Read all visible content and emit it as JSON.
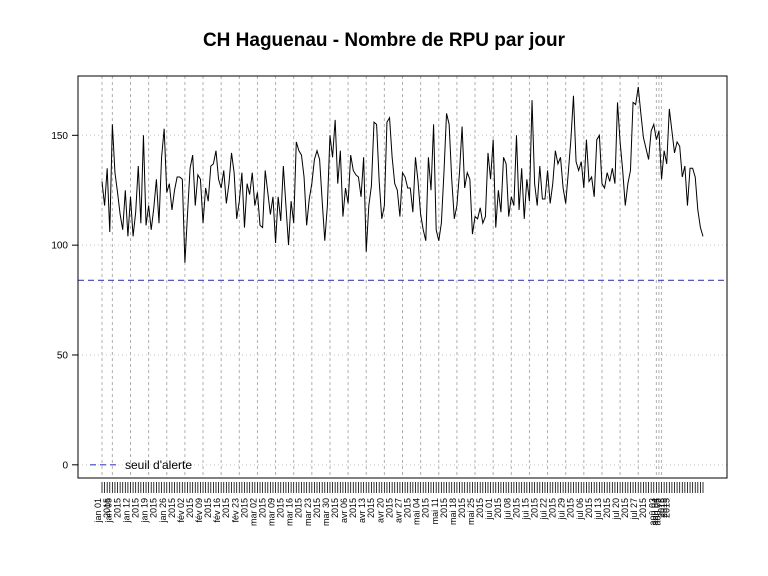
{
  "chart_data": {
    "type": "line",
    "title": "CH Haguenau  - Nombre de RPU par jour",
    "xlabel": "",
    "ylabel": "",
    "x_start": "2015-01-01",
    "ylim": [
      -6,
      177
    ],
    "yticks": [
      0,
      50,
      100,
      150
    ],
    "grid": true,
    "legend": {
      "position": "bottom-left",
      "entries": [
        "seuil d'alerte"
      ]
    },
    "threshold": {
      "name": "seuil d'alerte",
      "value": 84,
      "color": "#3b3bf5",
      "style": "dashed"
    },
    "series": [
      {
        "color": "#000000",
        "values": [
          129,
          118,
          135,
          106,
          155,
          133,
          124,
          114,
          107,
          125,
          104,
          122,
          104,
          115,
          136,
          110,
          150,
          109,
          118,
          107,
          117,
          130,
          110,
          140,
          153,
          124,
          128,
          116,
          125,
          131,
          131,
          130,
          92,
          114,
          135,
          141,
          118,
          132,
          130,
          110,
          126,
          120,
          136,
          137,
          143,
          130,
          126,
          134,
          119,
          128,
          142,
          133,
          112,
          120,
          133,
          108,
          128,
          123,
          133,
          118,
          124,
          109,
          108,
          134,
          124,
          114,
          122,
          101,
          122,
          111,
          136,
          118,
          100,
          120,
          110,
          147,
          143,
          141,
          131,
          109,
          121,
          128,
          139,
          143,
          139,
          120,
          102,
          118,
          150,
          140,
          157,
          128,
          143,
          113,
          126,
          119,
          141,
          134,
          132,
          131,
          122,
          140,
          97,
          118,
          127,
          156,
          155,
          129,
          112,
          118,
          156,
          158,
          140,
          128,
          125,
          113,
          133,
          131,
          126,
          126,
          115,
          140,
          129,
          114,
          107,
          102,
          140,
          125,
          155,
          107,
          102,
          110,
          133,
          160,
          155,
          130,
          112,
          118,
          133,
          154,
          126,
          133,
          130,
          105,
          113,
          112,
          117,
          110,
          113,
          142,
          130,
          148,
          108,
          125,
          115,
          140,
          137,
          113,
          122,
          118,
          150,
          116,
          135,
          112,
          130,
          120,
          166,
          128,
          118,
          136,
          121,
          121,
          134,
          119,
          128,
          143,
          137,
          140,
          126,
          119,
          133,
          148,
          168,
          138,
          134,
          138,
          126,
          148,
          129,
          131,
          122,
          148,
          150,
          128,
          126,
          133,
          129,
          135,
          128,
          165,
          147,
          134,
          118,
          128,
          134,
          165,
          164,
          172,
          160,
          149,
          144,
          139,
          152,
          155,
          148,
          152,
          130,
          143,
          137,
          162,
          152,
          142,
          147,
          145,
          131,
          136,
          118,
          135,
          135,
          131,
          116,
          108,
          104
        ],
        "step_days": 1
      }
    ],
    "x_ticks": [
      {
        "date": "2015-01-01",
        "label": "jan 01\n2015"
      },
      {
        "date": "2015-01-05",
        "label": "jan 05\n2015"
      },
      {
        "date": "2015-01-12",
        "label": "jan 12\n2015"
      },
      {
        "date": "2015-01-19",
        "label": "jan 19\n2015"
      },
      {
        "date": "2015-01-26",
        "label": "jan 26\n2015"
      },
      {
        "date": "2015-02-02",
        "label": "fév 02\n2015"
      },
      {
        "date": "2015-02-09",
        "label": "fév 09\n2015"
      },
      {
        "date": "2015-02-16",
        "label": "fév 16\n2015"
      },
      {
        "date": "2015-02-23",
        "label": "fév 23\n2015"
      },
      {
        "date": "2015-03-02",
        "label": "mar 02\n2015"
      },
      {
        "date": "2015-03-09",
        "label": "mar 09\n2015"
      },
      {
        "date": "2015-03-16",
        "label": "mar 16\n2015"
      },
      {
        "date": "2015-03-23",
        "label": "mar 23\n2015"
      },
      {
        "date": "2015-03-30",
        "label": "mar 30\n2015"
      },
      {
        "date": "2015-04-06",
        "label": "avr 06\n2015"
      },
      {
        "date": "2015-04-13",
        "label": "avr 13\n2015"
      },
      {
        "date": "2015-04-20",
        "label": "avr 20\n2015"
      },
      {
        "date": "2015-04-27",
        "label": "avr 27\n2015"
      },
      {
        "date": "2015-05-04",
        "label": "mai 04\n2015"
      },
      {
        "date": "2015-05-11",
        "label": "mai 11\n2015"
      },
      {
        "date": "2015-05-18",
        "label": "mai 18\n2015"
      },
      {
        "date": "2015-05-25",
        "label": "mai 25\n2015"
      },
      {
        "date": "2015-06-01",
        "label": "jui 01\n2015"
      },
      {
        "date": "2015-06-08",
        "label": "jui 08\n2015"
      },
      {
        "date": "2015-06-15",
        "label": "jui 15\n2015"
      },
      {
        "date": "2015-06-22",
        "label": "jui 22\n2015"
      },
      {
        "date": "2015-06-29",
        "label": "jui 29\n2015"
      },
      {
        "date": "2015-07-06",
        "label": "jul 06\n2015"
      },
      {
        "date": "2015-07-13",
        "label": "jul 13\n2015"
      },
      {
        "date": "2015-07-20",
        "label": "jul 20\n2015"
      },
      {
        "date": "2015-07-27",
        "label": "jul 27\n2015"
      },
      {
        "date": "2015-08-03",
        "label": "aoû 03\n2015"
      },
      {
        "date": "2015-08-04",
        "label": "aoû 04\n2015"
      },
      {
        "date": "2015-08-05",
        "label": "aoû 05\n2015"
      }
    ]
  }
}
